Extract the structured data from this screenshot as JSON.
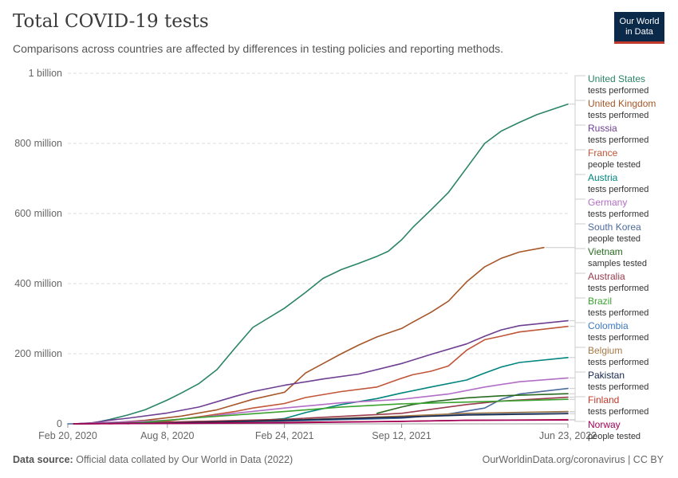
{
  "header": {
    "title": "Total COVID-19 tests",
    "subtitle": "Comparisons across countries are affected by differences in testing policies and reporting methods."
  },
  "logo": {
    "line1": "Our World",
    "line2": "in Data"
  },
  "footer": {
    "source_label": "Data source:",
    "source_text": "Official data collated by Our World in Data (2022)",
    "right_text": "OurWorldinData.org/coronavirus | CC BY"
  },
  "chart_data": {
    "type": "line",
    "title": "Total COVID-19 tests",
    "ylim": [
      0,
      1000
    ],
    "y_unit": "million",
    "yticks": [
      {
        "value": 0,
        "label": "0"
      },
      {
        "value": 200,
        "label": "200 million"
      },
      {
        "value": 400,
        "label": "400 million"
      },
      {
        "value": 600,
        "label": "600 million"
      },
      {
        "value": 800,
        "label": "800 million"
      },
      {
        "value": 1000,
        "label": "1 billion"
      }
    ],
    "xlim": [
      "2020-02-20",
      "2022-06-23"
    ],
    "xticks": [
      {
        "date": "2020-02-20",
        "label": "Feb 20, 2020"
      },
      {
        "date": "2020-08-08",
        "label": "Aug 8, 2020"
      },
      {
        "date": "2021-02-24",
        "label": "Feb 24, 2021"
      },
      {
        "date": "2021-09-12",
        "label": "Sep 12, 2021"
      },
      {
        "date": "2022-06-23",
        "label": "Jun 23, 2022"
      }
    ],
    "grid": true,
    "legend_position": "right",
    "series": [
      {
        "name": "United States",
        "metric": "tests performed",
        "color": "#2a8467",
        "points": [
          [
            "2020-03-01",
            0
          ],
          [
            "2020-04-01",
            2
          ],
          [
            "2020-05-01",
            12
          ],
          [
            "2020-06-01",
            25
          ],
          [
            "2020-07-01",
            40
          ],
          [
            "2020-08-08",
            68
          ],
          [
            "2020-09-01",
            88
          ],
          [
            "2020-10-01",
            115
          ],
          [
            "2020-11-01",
            155
          ],
          [
            "2020-12-01",
            215
          ],
          [
            "2021-01-01",
            275
          ],
          [
            "2021-02-24",
            330
          ],
          [
            "2021-04-01",
            375
          ],
          [
            "2021-05-01",
            415
          ],
          [
            "2021-06-01",
            440
          ],
          [
            "2021-07-01",
            458
          ],
          [
            "2021-08-01",
            478
          ],
          [
            "2021-08-20",
            492
          ],
          [
            "2021-09-12",
            525
          ],
          [
            "2021-10-01",
            560
          ],
          [
            "2021-11-01",
            610
          ],
          [
            "2021-12-01",
            660
          ],
          [
            "2022-01-01",
            730
          ],
          [
            "2022-02-01",
            800
          ],
          [
            "2022-03-01",
            835
          ],
          [
            "2022-04-01",
            860
          ],
          [
            "2022-05-01",
            882
          ],
          [
            "2022-06-23",
            912
          ]
        ]
      },
      {
        "name": "United Kingdom",
        "metric": "tests performed",
        "color": "#a65628",
        "points": [
          [
            "2020-03-01",
            0
          ],
          [
            "2020-05-01",
            3
          ],
          [
            "2020-07-01",
            10
          ],
          [
            "2020-09-01",
            22
          ],
          [
            "2020-11-01",
            40
          ],
          [
            "2021-01-01",
            70
          ],
          [
            "2021-02-24",
            90
          ],
          [
            "2021-04-01",
            145
          ],
          [
            "2021-05-01",
            172
          ],
          [
            "2021-06-01",
            200
          ],
          [
            "2021-07-01",
            225
          ],
          [
            "2021-08-01",
            248
          ],
          [
            "2021-09-12",
            272
          ],
          [
            "2021-10-01",
            290
          ],
          [
            "2021-11-01",
            318
          ],
          [
            "2021-12-01",
            350
          ],
          [
            "2022-01-01",
            405
          ],
          [
            "2022-02-01",
            448
          ],
          [
            "2022-03-01",
            472
          ],
          [
            "2022-04-01",
            490
          ],
          [
            "2022-05-13",
            503
          ]
        ]
      },
      {
        "name": "Russia",
        "metric": "tests performed",
        "color": "#6d3e91",
        "points": [
          [
            "2020-03-01",
            0
          ],
          [
            "2020-04-01",
            3
          ],
          [
            "2020-05-01",
            10
          ],
          [
            "2020-06-01",
            16
          ],
          [
            "2020-08-08",
            31
          ],
          [
            "2020-10-01",
            48
          ],
          [
            "2020-12-01",
            78
          ],
          [
            "2021-01-01",
            92
          ],
          [
            "2021-02-24",
            110
          ],
          [
            "2021-05-01",
            128
          ],
          [
            "2021-07-01",
            142
          ],
          [
            "2021-09-12",
            172
          ],
          [
            "2021-11-01",
            198
          ],
          [
            "2022-01-01",
            228
          ],
          [
            "2022-02-01",
            250
          ],
          [
            "2022-03-01",
            268
          ],
          [
            "2022-04-01",
            280
          ],
          [
            "2022-06-23",
            294
          ]
        ]
      },
      {
        "name": "France",
        "metric": "people tested",
        "color": "#c05538",
        "points": [
          [
            "2020-05-01",
            0
          ],
          [
            "2020-06-01",
            2
          ],
          [
            "2020-08-08",
            8
          ],
          [
            "2020-10-01",
            20
          ],
          [
            "2020-12-01",
            35
          ],
          [
            "2021-01-01",
            45
          ],
          [
            "2021-02-24",
            58
          ],
          [
            "2021-04-01",
            75
          ],
          [
            "2021-06-01",
            92
          ],
          [
            "2021-08-01",
            105
          ],
          [
            "2021-09-12",
            130
          ],
          [
            "2021-10-01",
            140
          ],
          [
            "2021-11-01",
            150
          ],
          [
            "2021-12-01",
            165
          ],
          [
            "2022-01-01",
            210
          ],
          [
            "2022-02-01",
            240
          ],
          [
            "2022-03-01",
            250
          ],
          [
            "2022-04-01",
            262
          ],
          [
            "2022-06-23",
            278
          ]
        ]
      },
      {
        "name": "Austria",
        "metric": "tests performed",
        "color": "#00847e",
        "points": [
          [
            "2020-03-01",
            0
          ],
          [
            "2020-08-08",
            2
          ],
          [
            "2020-12-01",
            5
          ],
          [
            "2021-01-01",
            8
          ],
          [
            "2021-02-24",
            15
          ],
          [
            "2021-04-01",
            32
          ],
          [
            "2021-06-01",
            55
          ],
          [
            "2021-08-01",
            72
          ],
          [
            "2021-09-12",
            88
          ],
          [
            "2021-11-01",
            105
          ],
          [
            "2022-01-01",
            125
          ],
          [
            "2022-02-01",
            145
          ],
          [
            "2022-03-01",
            162
          ],
          [
            "2022-04-01",
            175
          ],
          [
            "2022-06-23",
            189
          ]
        ]
      },
      {
        "name": "Germany",
        "metric": "tests performed",
        "color": "#b16ec5",
        "points": [
          [
            "2020-03-01",
            0
          ],
          [
            "2020-05-01",
            4
          ],
          [
            "2020-08-08",
            10
          ],
          [
            "2020-10-01",
            18
          ],
          [
            "2020-12-01",
            30
          ],
          [
            "2021-02-24",
            45
          ],
          [
            "2021-06-01",
            60
          ],
          [
            "2021-09-12",
            70
          ],
          [
            "2021-12-01",
            85
          ],
          [
            "2022-02-01",
            105
          ],
          [
            "2022-04-01",
            120
          ],
          [
            "2022-06-23",
            131
          ]
        ]
      },
      {
        "name": "South Korea",
        "metric": "people tested",
        "color": "#4c6a9c",
        "points": [
          [
            "2020-02-20",
            0
          ],
          [
            "2020-08-08",
            2
          ],
          [
            "2021-02-24",
            8
          ],
          [
            "2021-09-12",
            16
          ],
          [
            "2021-12-01",
            28
          ],
          [
            "2022-02-01",
            45
          ],
          [
            "2022-03-01",
            70
          ],
          [
            "2022-04-01",
            85
          ],
          [
            "2022-06-23",
            101
          ]
        ]
      },
      {
        "name": "Vietnam",
        "metric": "samples tested",
        "color": "#286b20",
        "points": [
          [
            "2021-08-01",
            30
          ],
          [
            "2021-09-12",
            48
          ],
          [
            "2021-10-01",
            55
          ],
          [
            "2021-11-01",
            63
          ],
          [
            "2022-01-01",
            74
          ],
          [
            "2022-03-01",
            80
          ],
          [
            "2022-06-23",
            86
          ]
        ]
      },
      {
        "name": "Australia",
        "metric": "tests performed",
        "color": "#9a3b4d",
        "points": [
          [
            "2020-03-01",
            0
          ],
          [
            "2020-08-08",
            5
          ],
          [
            "2021-02-24",
            13
          ],
          [
            "2021-09-12",
            30
          ],
          [
            "2022-01-01",
            55
          ],
          [
            "2022-03-01",
            65
          ],
          [
            "2022-06-23",
            76
          ]
        ]
      },
      {
        "name": "Brazil",
        "metric": "tests performed",
        "color": "#3aa22f",
        "points": [
          [
            "2020-06-01",
            0
          ],
          [
            "2020-08-08",
            10
          ],
          [
            "2020-10-01",
            18
          ],
          [
            "2021-02-24",
            35
          ],
          [
            "2021-06-01",
            48
          ],
          [
            "2021-09-12",
            57
          ],
          [
            "2022-01-01",
            62
          ],
          [
            "2022-06-23",
            70
          ]
        ]
      },
      {
        "name": "Colombia",
        "metric": "tests performed",
        "color": "#3c79be",
        "points": [
          [
            "2020-03-01",
            0
          ],
          [
            "2020-08-08",
            2
          ],
          [
            "2021-02-24",
            8
          ],
          [
            "2021-09-12",
            20
          ],
          [
            "2022-01-01",
            28
          ],
          [
            "2022-06-23",
            34
          ]
        ]
      },
      {
        "name": "Belgium",
        "metric": "tests performed",
        "color": "#a57946",
        "points": [
          [
            "2020-03-01",
            0
          ],
          [
            "2020-08-08",
            2
          ],
          [
            "2021-02-24",
            10
          ],
          [
            "2021-09-12",
            22
          ],
          [
            "2022-01-01",
            30
          ],
          [
            "2022-06-23",
            35
          ]
        ]
      },
      {
        "name": "Pakistan",
        "metric": "tests performed",
        "color": "#14264b",
        "points": [
          [
            "2020-03-01",
            0
          ],
          [
            "2020-08-08",
            2
          ],
          [
            "2021-02-24",
            10
          ],
          [
            "2021-09-12",
            19
          ],
          [
            "2022-01-01",
            25
          ],
          [
            "2022-06-23",
            29
          ]
        ]
      },
      {
        "name": "Finland",
        "metric": "tests performed",
        "color": "#c0392b",
        "points": [
          [
            "2020-03-01",
            0
          ],
          [
            "2020-08-08",
            1
          ],
          [
            "2021-02-24",
            4
          ],
          [
            "2021-09-12",
            7
          ],
          [
            "2022-01-01",
            10
          ],
          [
            "2022-06-23",
            12
          ]
        ]
      },
      {
        "name": "Norway",
        "metric": "people tested",
        "color": "#a2005a",
        "points": [
          [
            "2020-03-01",
            0
          ],
          [
            "2020-08-08",
            1
          ],
          [
            "2021-02-24",
            3
          ],
          [
            "2021-09-12",
            7
          ],
          [
            "2022-01-01",
            10
          ],
          [
            "2022-06-23",
            11
          ]
        ]
      }
    ]
  }
}
